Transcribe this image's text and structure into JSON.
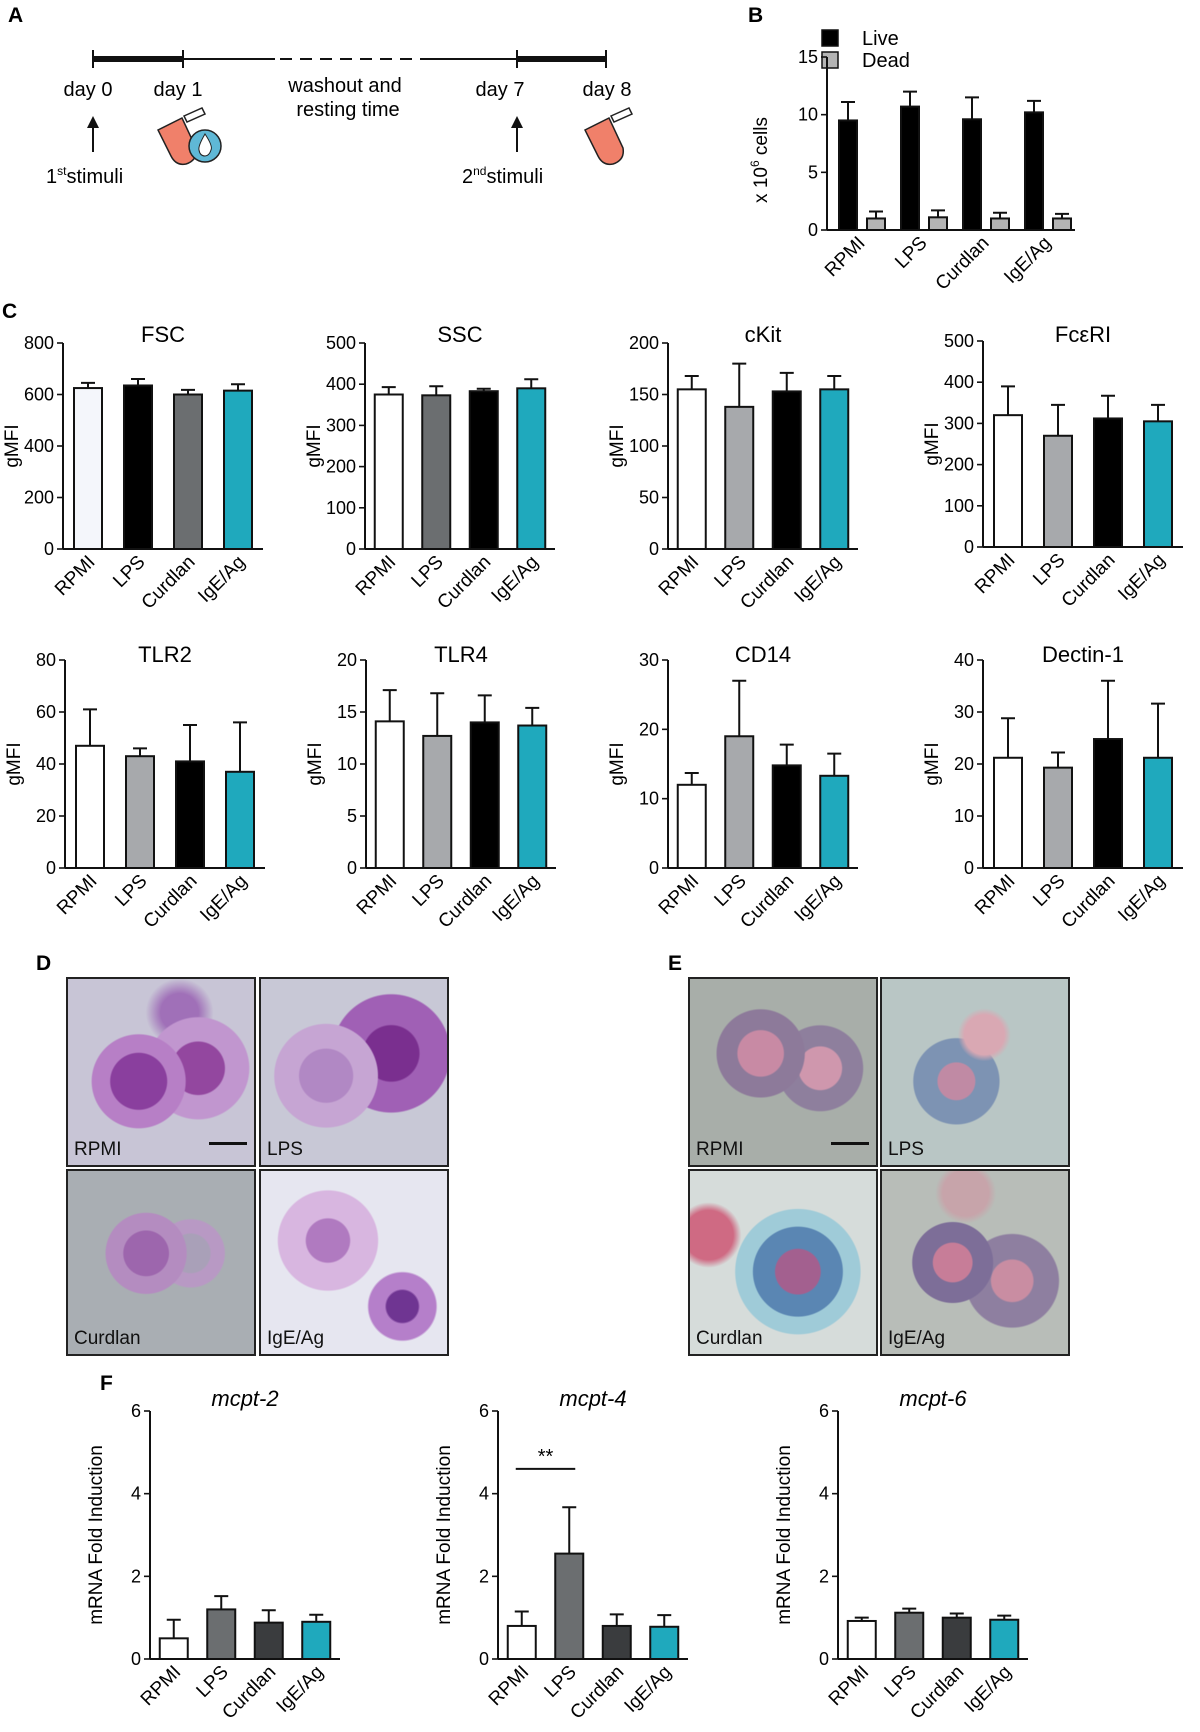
{
  "panel_labels": {
    "A": "A",
    "B": "B",
    "C": "C",
    "D": "D",
    "E": "E",
    "F": "F"
  },
  "timeline": {
    "day0": "day 0",
    "day1": "day 1",
    "washout_line1": "washout and",
    "washout_line2": "resting time",
    "day7": "day 7",
    "day8": "day 8",
    "stim1_num": "1",
    "stim1_sup": "st",
    "stim1_word": "stimuli",
    "stim2_num": "2",
    "stim2_sup": "nd",
    "stim2_word": "stimuli"
  },
  "colors": {
    "RPMI": "#ffffff",
    "LPS_gray": "#a7a9ac",
    "dark": "#000000",
    "mid_gray": "#6b6e70",
    "charcoal": "#3a3c3e",
    "teal": "#1fa9bd",
    "dead": "#b4b4b4"
  },
  "micrographs": {
    "D": {
      "labels": [
        "RPMI",
        "LPS",
        "Curdlan",
        "IgE/Ag"
      ],
      "stain": "purple-stain"
    },
    "E": {
      "labels": [
        "RPMI",
        "LPS",
        "Curdlan",
        "IgE/Ag"
      ],
      "stain": "blue-red-stain"
    }
  },
  "chart_data": [
    {
      "id": "B",
      "type": "bar",
      "title": "",
      "ylabel": "x 10",
      "ylabel_sup": "6",
      "ylabel_tail": " cells",
      "ylim": [
        0,
        15
      ],
      "yticks": [
        0,
        5,
        10,
        15
      ],
      "categories": [
        "RPMI",
        "LPS",
        "Curdlan",
        "IgE/Ag"
      ],
      "series": [
        {
          "name": "Live",
          "values": [
            9.5,
            10.7,
            9.6,
            10.2
          ],
          "errors": [
            1.6,
            1.3,
            1.9,
            1.0
          ],
          "color": "#000000"
        },
        {
          "name": "Dead",
          "values": [
            1.0,
            1.1,
            1.0,
            1.0
          ],
          "errors": [
            0.6,
            0.6,
            0.5,
            0.4
          ],
          "color": "#b4b4b4"
        }
      ],
      "legend": "top-right"
    },
    {
      "id": "FSC",
      "type": "bar",
      "title": "FSC",
      "ylabel": "gMFI",
      "ylim": [
        0,
        800
      ],
      "yticks": [
        0,
        200,
        400,
        600,
        800
      ],
      "categories": [
        "RPMI",
        "LPS",
        "Curdlan",
        "IgE/Ag"
      ],
      "values": [
        625,
        635,
        600,
        615
      ],
      "errors": [
        20,
        25,
        18,
        25
      ],
      "colors": [
        "#f4f6fb",
        "#000000",
        "#6b6e70",
        "#1fa9bd"
      ]
    },
    {
      "id": "SSC",
      "type": "bar",
      "title": "SSC",
      "ylabel": "gMFI",
      "ylim": [
        0,
        500
      ],
      "yticks": [
        0,
        100,
        200,
        300,
        400,
        500
      ],
      "categories": [
        "RPMI",
        "LPS",
        "Curdlan",
        "IgE/Ag"
      ],
      "values": [
        375,
        373,
        383,
        390
      ],
      "errors": [
        18,
        22,
        6,
        22
      ],
      "colors": [
        "#ffffff",
        "#6b6e70",
        "#000000",
        "#1fa9bd"
      ]
    },
    {
      "id": "cKit",
      "type": "bar",
      "title": "cKit",
      "ylabel": "gMFI",
      "ylim": [
        0,
        200
      ],
      "yticks": [
        0,
        50,
        100,
        150,
        200
      ],
      "categories": [
        "RPMI",
        "LPS",
        "Curdlan",
        "IgE/Ag"
      ],
      "values": [
        155,
        138,
        153,
        155
      ],
      "errors": [
        13,
        42,
        18,
        13
      ],
      "colors": [
        "#ffffff",
        "#a7a9ac",
        "#000000",
        "#1fa9bd"
      ]
    },
    {
      "id": "FceRI",
      "type": "bar",
      "title": "FcεRI",
      "ylabel": "gMFI",
      "ylim": [
        0,
        500
      ],
      "yticks": [
        0,
        100,
        200,
        300,
        400,
        500
      ],
      "categories": [
        "RPMI",
        "LPS",
        "Curdlan",
        "IgE/Ag"
      ],
      "values": [
        320,
        270,
        312,
        305
      ],
      "errors": [
        70,
        75,
        55,
        40
      ],
      "colors": [
        "#ffffff",
        "#a7a9ac",
        "#000000",
        "#1fa9bd"
      ]
    },
    {
      "id": "TLR2",
      "type": "bar",
      "title": "TLR2",
      "ylabel": "gMFI",
      "ylim": [
        0,
        80
      ],
      "yticks": [
        0,
        20,
        40,
        60,
        80
      ],
      "categories": [
        "RPMI",
        "LPS",
        "Curdlan",
        "IgE/Ag"
      ],
      "values": [
        47,
        43,
        41,
        37
      ],
      "errors": [
        14,
        3,
        14,
        19
      ],
      "colors": [
        "#ffffff",
        "#a7a9ac",
        "#000000",
        "#1fa9bd"
      ]
    },
    {
      "id": "TLR4",
      "type": "bar",
      "title": "TLR4",
      "ylabel": "gMFI",
      "ylim": [
        0,
        20
      ],
      "yticks": [
        0,
        5,
        10,
        15,
        20
      ],
      "categories": [
        "RPMI",
        "LPS",
        "Curdlan",
        "IgE/Ag"
      ],
      "values": [
        14.1,
        12.7,
        14.0,
        13.7
      ],
      "errors": [
        3.0,
        4.1,
        2.6,
        1.7
      ],
      "colors": [
        "#ffffff",
        "#a7a9ac",
        "#000000",
        "#1fa9bd"
      ]
    },
    {
      "id": "CD14",
      "type": "bar",
      "title": "CD14",
      "ylabel": "gMFI",
      "ylim": [
        0,
        30
      ],
      "yticks": [
        0,
        10,
        20,
        30
      ],
      "categories": [
        "RPMI",
        "LPS",
        "Curdlan",
        "IgE/Ag"
      ],
      "values": [
        12,
        19,
        14.8,
        13.3
      ],
      "errors": [
        1.7,
        8,
        3,
        3.2
      ],
      "colors": [
        "#ffffff",
        "#a7a9ac",
        "#000000",
        "#1fa9bd"
      ]
    },
    {
      "id": "Dectin1",
      "type": "bar",
      "title": "Dectin-1",
      "ylabel": "gMFI",
      "ylim": [
        0,
        40
      ],
      "yticks": [
        0,
        10,
        20,
        30,
        40
      ],
      "categories": [
        "RPMI",
        "LPS",
        "Curdlan",
        "IgE/Ag"
      ],
      "values": [
        21.2,
        19.3,
        24.8,
        21.2
      ],
      "errors": [
        7.6,
        2.9,
        11.2,
        10.4
      ],
      "colors": [
        "#ffffff",
        "#a7a9ac",
        "#000000",
        "#1fa9bd"
      ]
    },
    {
      "id": "mcpt2",
      "type": "bar",
      "title": "mcpt-2",
      "ylabel": "mRNA Fold Induction",
      "ylim": [
        0,
        6
      ],
      "yticks": [
        0,
        2,
        4,
        6
      ],
      "categories": [
        "RPMI",
        "LPS",
        "Curdlan",
        "IgE/Ag"
      ],
      "values": [
        0.5,
        1.2,
        0.88,
        0.9
      ],
      "errors": [
        0.45,
        0.32,
        0.3,
        0.17
      ],
      "colors": [
        "#ffffff",
        "#6b6e70",
        "#3a3c3e",
        "#1fa9bd"
      ]
    },
    {
      "id": "mcpt4",
      "type": "bar",
      "title": "mcpt-4",
      "ylabel": "mRNA Fold Induction",
      "ylim": [
        0,
        6
      ],
      "yticks": [
        0,
        2,
        4,
        6
      ],
      "categories": [
        "RPMI",
        "LPS",
        "Curdlan",
        "IgE/Ag"
      ],
      "values": [
        0.8,
        2.55,
        0.8,
        0.78
      ],
      "errors": [
        0.35,
        1.12,
        0.28,
        0.28
      ],
      "colors": [
        "#ffffff",
        "#6b6e70",
        "#3a3c3e",
        "#1fa9bd"
      ],
      "annotation": {
        "text": "**",
        "between": [
          "RPMI",
          "LPS"
        ],
        "y": 4.6
      }
    },
    {
      "id": "mcpt6",
      "type": "bar",
      "title": "mcpt-6",
      "ylabel": "mRNA Fold Induction",
      "ylim": [
        0,
        6
      ],
      "yticks": [
        0,
        2,
        4,
        6
      ],
      "categories": [
        "RPMI",
        "LPS",
        "Curdlan",
        "IgE/Ag"
      ],
      "values": [
        0.92,
        1.12,
        1.0,
        0.95
      ],
      "errors": [
        0.08,
        0.1,
        0.1,
        0.1
      ],
      "colors": [
        "#ffffff",
        "#6b6e70",
        "#3a3c3e",
        "#1fa9bd"
      ]
    }
  ]
}
